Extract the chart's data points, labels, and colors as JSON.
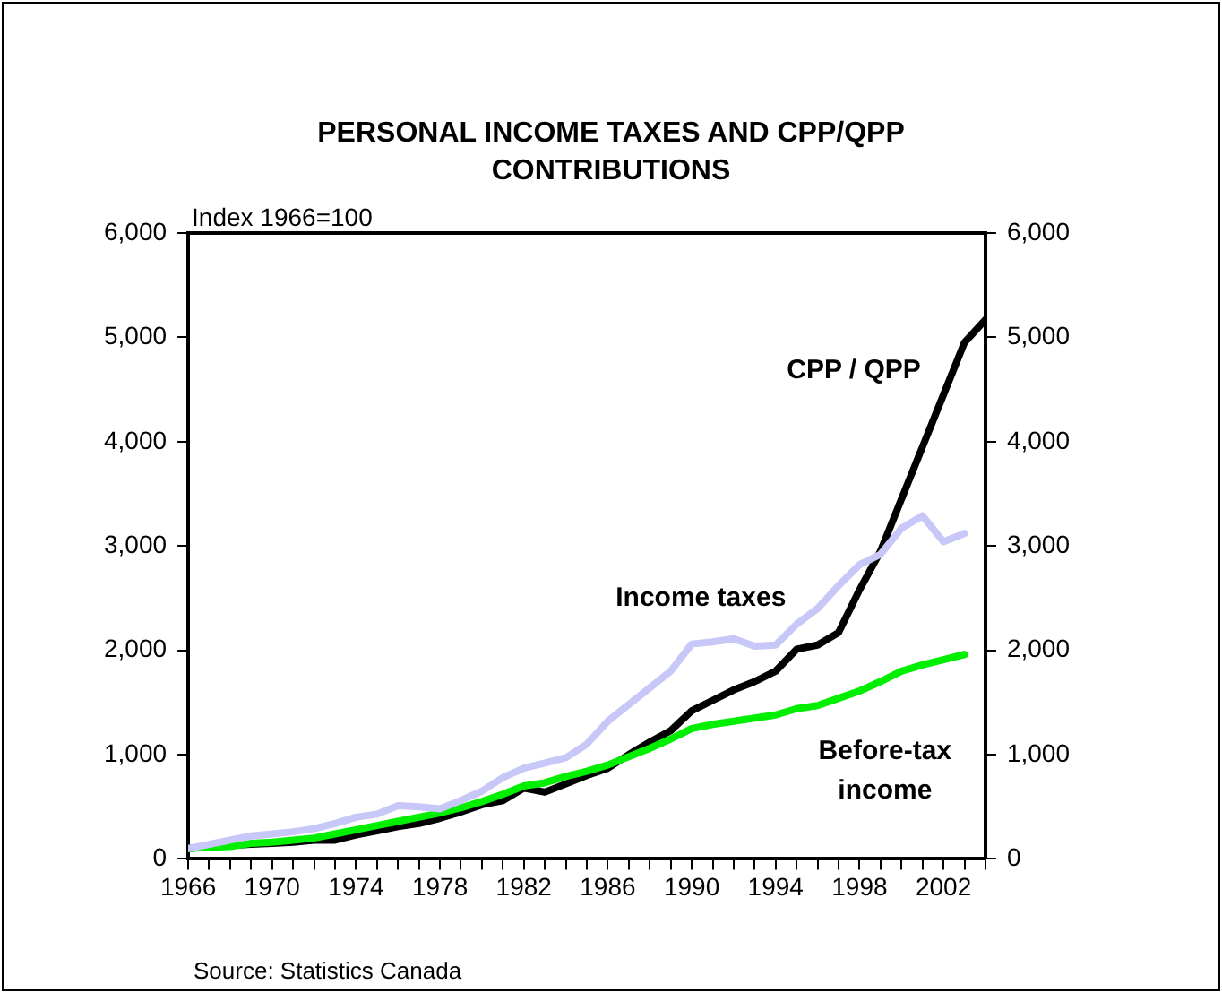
{
  "chart_data": {
    "type": "line",
    "title": "PERSONAL INCOME TAXES AND CPP/QPP CONTRIBUTIONS",
    "ylabel": "Index 1966=100",
    "x": [
      1966,
      1967,
      1968,
      1969,
      1970,
      1971,
      1972,
      1973,
      1974,
      1975,
      1976,
      1977,
      1978,
      1979,
      1980,
      1981,
      1982,
      1983,
      1984,
      1985,
      1986,
      1987,
      1988,
      1989,
      1990,
      1991,
      1992,
      1993,
      1994,
      1995,
      1996,
      1997,
      1998,
      1999,
      2000,
      2001,
      2002,
      2003,
      2004
    ],
    "series": [
      {
        "name": "Income taxes",
        "color": "#c8c8f8",
        "values": [
          100,
          140,
          180,
          220,
          240,
          260,
          290,
          340,
          400,
          430,
          510,
          500,
          480,
          560,
          650,
          780,
          870,
          920,
          970,
          1100,
          1320,
          1480,
          1640,
          1800,
          2060,
          2080,
          2110,
          2040,
          2050,
          2250,
          2400,
          2620,
          2820,
          2920,
          3170,
          3290,
          3040,
          3120,
          null
        ]
      },
      {
        "name": "Before-tax\nincome",
        "color": "#00ee00",
        "values": [
          100,
          110,
          120,
          150,
          160,
          180,
          200,
          240,
          280,
          320,
          360,
          400,
          440,
          490,
          550,
          620,
          700,
          730,
          790,
          840,
          900,
          980,
          1060,
          1150,
          1250,
          1290,
          1320,
          1350,
          1380,
          1440,
          1470,
          1540,
          1610,
          1700,
          1800,
          1860,
          1910,
          1960,
          null
        ]
      },
      {
        "name": "CPP / QPP",
        "color": "#000000",
        "values": [
          100,
          120,
          130,
          140,
          150,
          160,
          180,
          180,
          230,
          270,
          310,
          340,
          390,
          450,
          520,
          560,
          680,
          640,
          720,
          800,
          870,
          1000,
          1120,
          1230,
          1420,
          1520,
          1620,
          1700,
          1800,
          2010,
          2050,
          2170,
          2580,
          2950,
          3450,
          3950,
          4450,
          4950,
          5170
        ]
      }
    ],
    "xlim": [
      1966,
      2004
    ],
    "xticks": [
      1966,
      {
        "value": 1967,
        "label": null
      },
      {
        "value": 1968,
        "label": null
      },
      {
        "value": 1969,
        "label": null
      },
      1970,
      {
        "value": 1971,
        "label": null
      },
      {
        "value": 1972,
        "label": null
      },
      {
        "value": 1973,
        "label": null
      },
      1974,
      {
        "value": 1975,
        "label": null
      },
      {
        "value": 1976,
        "label": null
      },
      {
        "value": 1977,
        "label": null
      },
      1978,
      {
        "value": 1979,
        "label": null
      },
      {
        "value": 1980,
        "label": null
      },
      {
        "value": 1981,
        "label": null
      },
      1982,
      {
        "value": 1983,
        "label": null
      },
      {
        "value": 1984,
        "label": null
      },
      {
        "value": 1985,
        "label": null
      },
      1986,
      {
        "value": 1987,
        "label": null
      },
      {
        "value": 1988,
        "label": null
      },
      {
        "value": 1989,
        "label": null
      },
      1990,
      {
        "value": 1991,
        "label": null
      },
      {
        "value": 1992,
        "label": null
      },
      {
        "value": 1993,
        "label": null
      },
      1994,
      {
        "value": 1995,
        "label": null
      },
      {
        "value": 1996,
        "label": null
      },
      {
        "value": 1997,
        "label": null
      },
      1998,
      {
        "value": 1999,
        "label": null
      },
      {
        "value": 2000,
        "label": null
      },
      {
        "value": 2001,
        "label": null
      },
      2002,
      {
        "value": 2003,
        "label": null
      },
      {
        "value": 2004,
        "label": null
      }
    ],
    "ylim": [
      0,
      6000
    ],
    "yticks": [
      0,
      {
        "value": 1000,
        "label": "1,000"
      },
      {
        "value": 2000,
        "label": "2,000"
      },
      {
        "value": 3000,
        "label": "3,000"
      },
      {
        "value": 4000,
        "label": "4,000"
      },
      {
        "value": 5000,
        "label": "5,000"
      },
      {
        "value": 6000,
        "label": "6,000"
      }
    ],
    "y2lim": [
      0,
      6000
    ],
    "y2ticks": [
      0,
      {
        "value": 1000,
        "label": "1,000"
      },
      {
        "value": 2000,
        "label": "2,000"
      },
      {
        "value": 3000,
        "label": "3,000"
      },
      {
        "value": 4000,
        "label": "4,000"
      },
      {
        "value": 5000,
        "label": "5,000"
      },
      {
        "value": 6000,
        "label": "6,000"
      }
    ],
    "grid": false,
    "legend": false,
    "marker": "none",
    "line_style": "solid",
    "annotations": [
      "Source: Statistics Canada"
    ]
  }
}
